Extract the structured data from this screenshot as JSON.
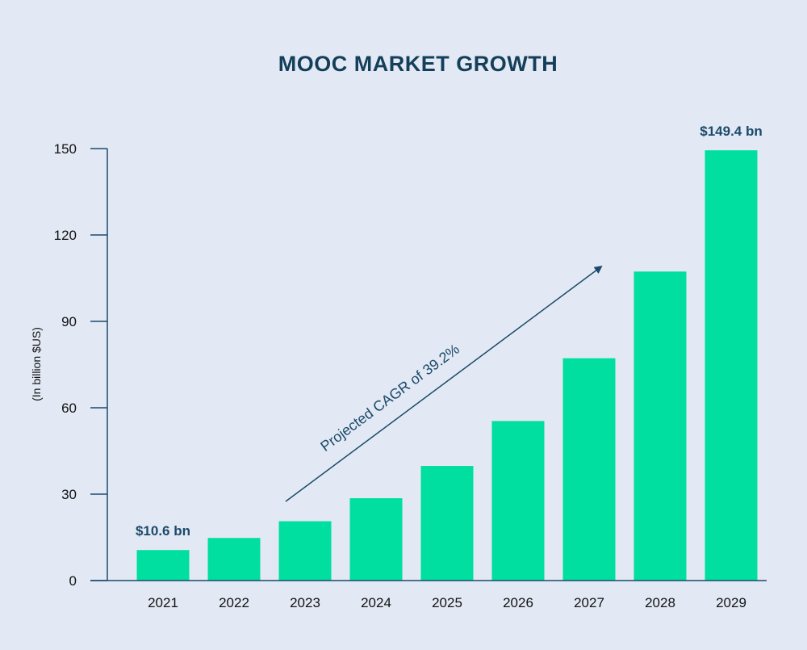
{
  "chart_data": {
    "type": "bar",
    "title": "MOOC MARKET GROWTH",
    "ylabel": "(In billion $US)",
    "xlabel": "",
    "categories": [
      "2021",
      "2022",
      "2023",
      "2024",
      "2025",
      "2026",
      "2027",
      "2028",
      "2029"
    ],
    "values": [
      10.6,
      14.8,
      20.6,
      28.6,
      39.8,
      55.4,
      77.2,
      107.3,
      149.4
    ],
    "ylim": [
      0,
      150
    ],
    "yticks": [
      0,
      30,
      60,
      90,
      120,
      150
    ],
    "grid": false,
    "bar_color": "#00df9f",
    "axis_color": "#1b4a6b",
    "data_labels": [
      {
        "category": "2021",
        "text": "$10.6 bn"
      },
      {
        "category": "2029",
        "text": "$149.4 bn"
      }
    ],
    "annotation": {
      "text": "Projected CAGR of 39.2%",
      "arrow_from": {
        "category": "2023",
        "value": 30
      },
      "arrow_to": {
        "category": "2028",
        "value": 109
      }
    }
  }
}
